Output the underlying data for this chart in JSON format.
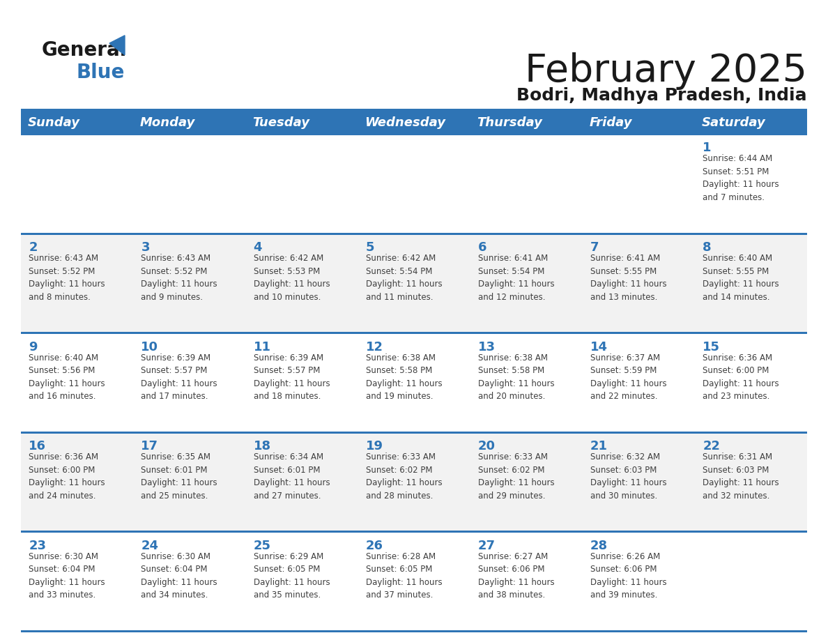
{
  "title": "February 2025",
  "subtitle": "Bodri, Madhya Pradesh, India",
  "days_of_week": [
    "Sunday",
    "Monday",
    "Tuesday",
    "Wednesday",
    "Thursday",
    "Friday",
    "Saturday"
  ],
  "header_bg": "#2E74B5",
  "header_text": "#FFFFFF",
  "cell_bg_even": "#FFFFFF",
  "cell_bg_odd": "#F2F2F2",
  "day_number_color": "#2E74B5",
  "text_color": "#3F3F3F",
  "line_color": "#2E74B5",
  "logo_color": "#2E74B5",
  "logo_text_color": "#1a1a1a",
  "title_color": "#1a1a1a",
  "subtitle_color": "#1a1a1a",
  "title_fontsize": 40,
  "subtitle_fontsize": 18,
  "header_fontsize": 13,
  "day_num_fontsize": 13,
  "cell_text_fontsize": 8.5,
  "weeks": [
    [
      {
        "day": null,
        "info": null
      },
      {
        "day": null,
        "info": null
      },
      {
        "day": null,
        "info": null
      },
      {
        "day": null,
        "info": null
      },
      {
        "day": null,
        "info": null
      },
      {
        "day": null,
        "info": null
      },
      {
        "day": 1,
        "info": "Sunrise: 6:44 AM\nSunset: 5:51 PM\nDaylight: 11 hours\nand 7 minutes."
      }
    ],
    [
      {
        "day": 2,
        "info": "Sunrise: 6:43 AM\nSunset: 5:52 PM\nDaylight: 11 hours\nand 8 minutes."
      },
      {
        "day": 3,
        "info": "Sunrise: 6:43 AM\nSunset: 5:52 PM\nDaylight: 11 hours\nand 9 minutes."
      },
      {
        "day": 4,
        "info": "Sunrise: 6:42 AM\nSunset: 5:53 PM\nDaylight: 11 hours\nand 10 minutes."
      },
      {
        "day": 5,
        "info": "Sunrise: 6:42 AM\nSunset: 5:54 PM\nDaylight: 11 hours\nand 11 minutes."
      },
      {
        "day": 6,
        "info": "Sunrise: 6:41 AM\nSunset: 5:54 PM\nDaylight: 11 hours\nand 12 minutes."
      },
      {
        "day": 7,
        "info": "Sunrise: 6:41 AM\nSunset: 5:55 PM\nDaylight: 11 hours\nand 13 minutes."
      },
      {
        "day": 8,
        "info": "Sunrise: 6:40 AM\nSunset: 5:55 PM\nDaylight: 11 hours\nand 14 minutes."
      }
    ],
    [
      {
        "day": 9,
        "info": "Sunrise: 6:40 AM\nSunset: 5:56 PM\nDaylight: 11 hours\nand 16 minutes."
      },
      {
        "day": 10,
        "info": "Sunrise: 6:39 AM\nSunset: 5:57 PM\nDaylight: 11 hours\nand 17 minutes."
      },
      {
        "day": 11,
        "info": "Sunrise: 6:39 AM\nSunset: 5:57 PM\nDaylight: 11 hours\nand 18 minutes."
      },
      {
        "day": 12,
        "info": "Sunrise: 6:38 AM\nSunset: 5:58 PM\nDaylight: 11 hours\nand 19 minutes."
      },
      {
        "day": 13,
        "info": "Sunrise: 6:38 AM\nSunset: 5:58 PM\nDaylight: 11 hours\nand 20 minutes."
      },
      {
        "day": 14,
        "info": "Sunrise: 6:37 AM\nSunset: 5:59 PM\nDaylight: 11 hours\nand 22 minutes."
      },
      {
        "day": 15,
        "info": "Sunrise: 6:36 AM\nSunset: 6:00 PM\nDaylight: 11 hours\nand 23 minutes."
      }
    ],
    [
      {
        "day": 16,
        "info": "Sunrise: 6:36 AM\nSunset: 6:00 PM\nDaylight: 11 hours\nand 24 minutes."
      },
      {
        "day": 17,
        "info": "Sunrise: 6:35 AM\nSunset: 6:01 PM\nDaylight: 11 hours\nand 25 minutes."
      },
      {
        "day": 18,
        "info": "Sunrise: 6:34 AM\nSunset: 6:01 PM\nDaylight: 11 hours\nand 27 minutes."
      },
      {
        "day": 19,
        "info": "Sunrise: 6:33 AM\nSunset: 6:02 PM\nDaylight: 11 hours\nand 28 minutes."
      },
      {
        "day": 20,
        "info": "Sunrise: 6:33 AM\nSunset: 6:02 PM\nDaylight: 11 hours\nand 29 minutes."
      },
      {
        "day": 21,
        "info": "Sunrise: 6:32 AM\nSunset: 6:03 PM\nDaylight: 11 hours\nand 30 minutes."
      },
      {
        "day": 22,
        "info": "Sunrise: 6:31 AM\nSunset: 6:03 PM\nDaylight: 11 hours\nand 32 minutes."
      }
    ],
    [
      {
        "day": 23,
        "info": "Sunrise: 6:30 AM\nSunset: 6:04 PM\nDaylight: 11 hours\nand 33 minutes."
      },
      {
        "day": 24,
        "info": "Sunrise: 6:30 AM\nSunset: 6:04 PM\nDaylight: 11 hours\nand 34 minutes."
      },
      {
        "day": 25,
        "info": "Sunrise: 6:29 AM\nSunset: 6:05 PM\nDaylight: 11 hours\nand 35 minutes."
      },
      {
        "day": 26,
        "info": "Sunrise: 6:28 AM\nSunset: 6:05 PM\nDaylight: 11 hours\nand 37 minutes."
      },
      {
        "day": 27,
        "info": "Sunrise: 6:27 AM\nSunset: 6:06 PM\nDaylight: 11 hours\nand 38 minutes."
      },
      {
        "day": 28,
        "info": "Sunrise: 6:26 AM\nSunset: 6:06 PM\nDaylight: 11 hours\nand 39 minutes."
      },
      {
        "day": null,
        "info": null
      }
    ]
  ]
}
